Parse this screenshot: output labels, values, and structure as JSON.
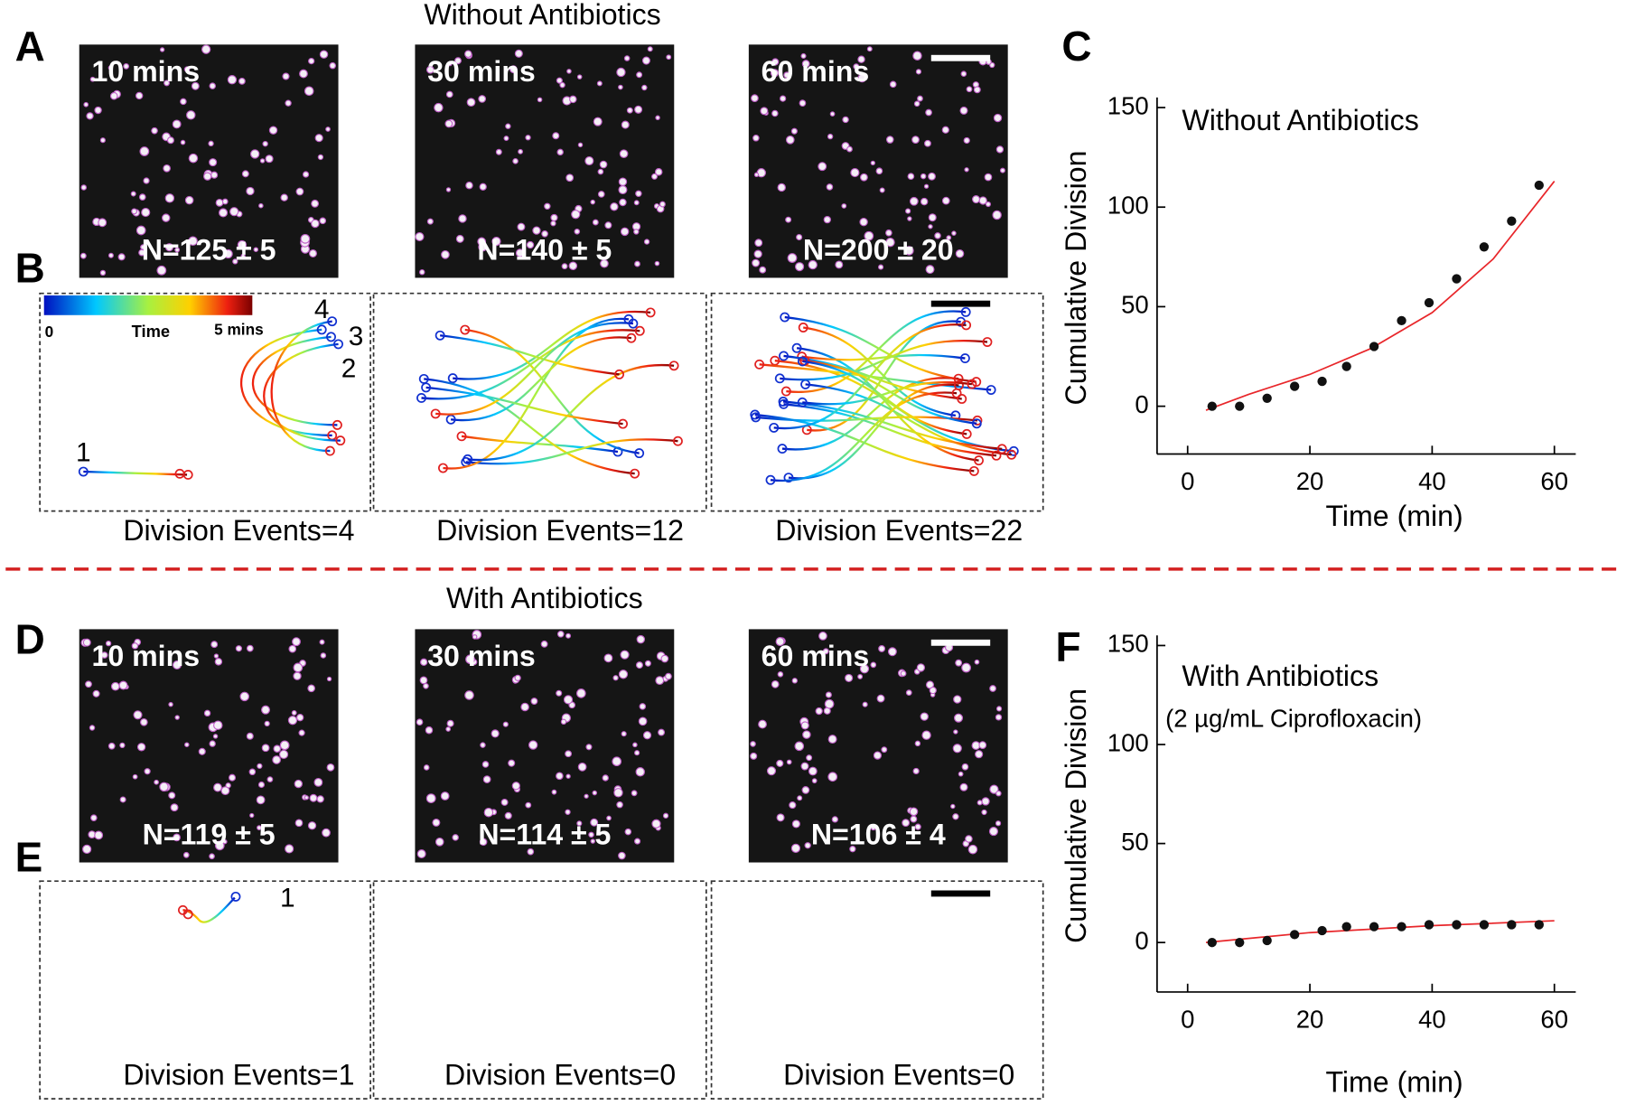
{
  "figure": {
    "top_title": "Without  Antibiotics",
    "bottom_title": "With  Antibiotics"
  },
  "panel_letters": [
    "A",
    "B",
    "C",
    "D",
    "E",
    "F"
  ],
  "images": [
    {
      "time": "10 mins",
      "count": "N=125 ± 5"
    },
    {
      "time": "30 mins",
      "count": "N=140 ± 5"
    },
    {
      "time": "60 mins",
      "count": "N=200 ± 20"
    },
    {
      "time": "10 mins",
      "count": "N=119 ± 5"
    },
    {
      "time": "30 mins",
      "count": "N=114 ± 5"
    },
    {
      "time": "60 mins",
      "count": "N=106 ± 4"
    }
  ],
  "trajectories": [
    "Division Events=4",
    "Division Events=12",
    "Division Events=22",
    "Division Events=1",
    "Division Events=0",
    "Division Events=0"
  ],
  "colorbar": {
    "min": "0",
    "label": "Time",
    "max": "5 mins"
  },
  "track_numbers": [
    "4",
    "3",
    "2",
    "1"
  ],
  "track_numbers_e": [
    "1"
  ],
  "chart_data": [
    {
      "type": "scatter",
      "title": "Without  Antibiotics",
      "x_label": "Time (min)",
      "y_label": "Cumulative Division",
      "x": [
        4,
        8.5,
        13,
        17.5,
        22,
        26,
        30.5,
        35,
        39.5,
        44,
        48.5,
        53,
        57.5
      ],
      "values": [
        0,
        0,
        4,
        10,
        12.5,
        20,
        30,
        43,
        52,
        64,
        80,
        93,
        111
      ],
      "color": "#111111",
      "fit": {
        "x": [
          3,
          10,
          20,
          30,
          40,
          50,
          60
        ],
        "values": [
          -2,
          6,
          16,
          29,
          47,
          74,
          113
        ],
        "color": "#e8262a"
      },
      "xlim": [
        -5,
        63.5
      ],
      "ylim": [
        -24,
        153
      ],
      "xticks": [
        0,
        20,
        40,
        60
      ],
      "yticks": [
        0,
        50,
        100,
        150
      ]
    },
    {
      "type": "scatter",
      "title": "With  Antibiotics",
      "subtitle": "(2 µg/mL Ciprofloxacin)",
      "x_label": "Time (min)",
      "y_label": "Cumulative Division",
      "x": [
        4,
        8.5,
        13,
        17.5,
        22,
        26,
        30.5,
        35,
        39.5,
        44,
        48.5,
        53,
        57.5
      ],
      "values": [
        0,
        0,
        1,
        4,
        6,
        8,
        8,
        8,
        9,
        9,
        9,
        9,
        9
      ],
      "color": "#111111",
      "fit": {
        "x": [
          3,
          20,
          40,
          60
        ],
        "values": [
          0,
          5,
          8.5,
          11
        ],
        "color": "#e8262a"
      },
      "xlim": [
        -5,
        63.5
      ],
      "ylim": [
        -25,
        153
      ],
      "xticks": [
        0,
        20,
        40,
        60
      ],
      "yticks": [
        0,
        50,
        100,
        150
      ]
    }
  ]
}
